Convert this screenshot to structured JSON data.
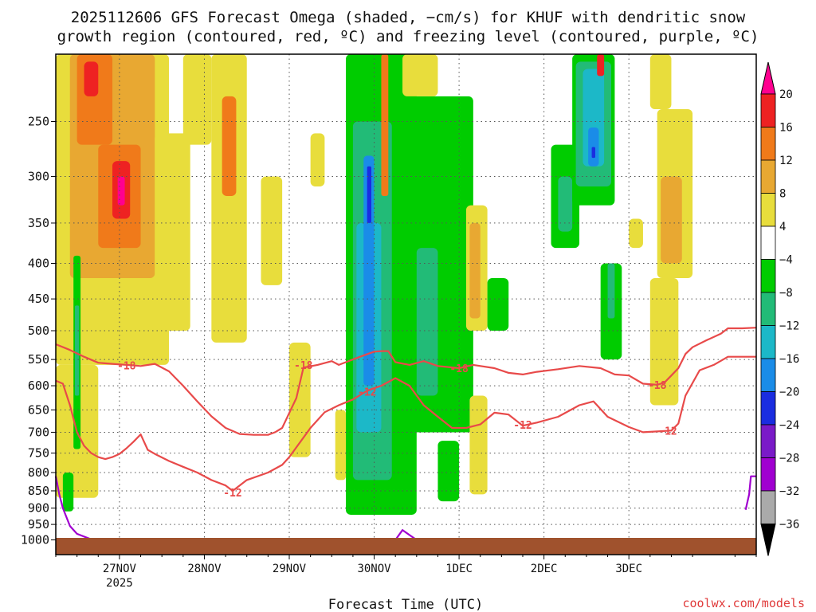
{
  "title_line1": "2025112606 GFS Forecast Omega (shaded, −cm/s) for KHUF with dendritic snow",
  "title_line2": "growth region (contoured, red, ºC) and freezing level (contoured, purple, ºC)",
  "credit": "coolwx.com/models",
  "chart_data": {
    "type": "heatmap",
    "title": "2025112606 GFS Forecast Omega (shaded, −cm/s) for KHUF with dendritic snow growth region (contoured, red, ºC) and freezing level (contoured, purple, ºC)",
    "xlabel": "Forecast Time (UTC)",
    "ylabel": "",
    "y_scale": "log-pressure (hPa), inverted",
    "y_ticks": [
      250,
      300,
      350,
      400,
      450,
      500,
      550,
      600,
      650,
      700,
      750,
      800,
      850,
      900,
      950,
      1000
    ],
    "x_ticks": [
      {
        "label": "27NOV",
        "sub": "2025"
      },
      {
        "label": "28NOV",
        "sub": ""
      },
      {
        "label": "29NOV",
        "sub": ""
      },
      {
        "label": "30NOV",
        "sub": ""
      },
      {
        "label": "1DEC",
        "sub": ""
      },
      {
        "label": "2DEC",
        "sub": ""
      },
      {
        "label": "3DEC",
        "sub": ""
      }
    ],
    "x_start_hour": -18,
    "x_end_hour": 180,
    "y_top_hpa": 200,
    "y_bottom_hpa": 1050,
    "grid": true,
    "colorbar": {
      "levels": [
        "20",
        "16",
        "12",
        "8",
        "4",
        "−4",
        "−8",
        "−12",
        "−16",
        "−20",
        "−24",
        "−28",
        "−32",
        "−36"
      ],
      "colors": [
        "#ff0090",
        "#ee2222",
        "#f07a1a",
        "#e8a832",
        "#e8dd3c",
        "#ffffff",
        "#00cc00",
        "#22bb77",
        "#1cb8c8",
        "#1a8ce8",
        "#1a2de0",
        "#7a1ac8",
        "#a000d0",
        "#aaaaaa",
        "#000000"
      ]
    },
    "omega_areas": [
      {
        "color": "#e8dd3c",
        "x0": -18,
        "x1": 14,
        "p0": 200,
        "p1": 560
      },
      {
        "color": "#e8dd3c",
        "x0": -18,
        "x1": -6,
        "p0": 560,
        "p1": 870
      },
      {
        "color": "#e8a832",
        "x0": -14,
        "x1": 10,
        "p0": 200,
        "p1": 420
      },
      {
        "color": "#f07a1a",
        "x0": -12,
        "x1": -2,
        "p0": 200,
        "p1": 270
      },
      {
        "color": "#ee2222",
        "x0": -10,
        "x1": -6,
        "p0": 205,
        "p1": 230
      },
      {
        "color": "#f07a1a",
        "x0": -6,
        "x1": 6,
        "p0": 270,
        "p1": 380
      },
      {
        "color": "#ee2222",
        "x0": -2,
        "x1": 3,
        "p0": 285,
        "p1": 345
      },
      {
        "color": "#ff0090",
        "x0": -0.5,
        "x1": 1.5,
        "p0": 300,
        "p1": 330
      },
      {
        "color": "#00cc00",
        "x0": -13,
        "x1": -11,
        "p0": 390,
        "p1": 740
      },
      {
        "color": "#22bb77",
        "x0": -12.6,
        "x1": -11.4,
        "p0": 460,
        "p1": 620
      },
      {
        "color": "#00cc00",
        "x0": -16,
        "x1": -13,
        "p0": 800,
        "p1": 910
      },
      {
        "color": "#e8dd3c",
        "x0": 10,
        "x1": 20,
        "p0": 260,
        "p1": 500
      },
      {
        "color": "#e8dd3c",
        "x0": 18,
        "x1": 26,
        "p0": 200,
        "p1": 270
      },
      {
        "color": "#e8dd3c",
        "x0": 26,
        "x1": 36,
        "p0": 200,
        "p1": 520
      },
      {
        "color": "#f07a1a",
        "x0": 29,
        "x1": 33,
        "p0": 230,
        "p1": 320
      },
      {
        "color": "#e8dd3c",
        "x0": 40,
        "x1": 46,
        "p0": 300,
        "p1": 430
      },
      {
        "color": "#e8dd3c",
        "x0": 48,
        "x1": 54,
        "p0": 520,
        "p1": 760
      },
      {
        "color": "#e8dd3c",
        "x0": 54,
        "x1": 58,
        "p0": 260,
        "p1": 310
      },
      {
        "color": "#e8dd3c",
        "x0": 61,
        "x1": 64,
        "p0": 650,
        "p1": 820
      },
      {
        "color": "#00cc00",
        "x0": 64,
        "x1": 84,
        "p0": 200,
        "p1": 920
      },
      {
        "color": "#22bb77",
        "x0": 66,
        "x1": 77,
        "p0": 250,
        "p1": 820
      },
      {
        "color": "#1cb8c8",
        "x0": 67,
        "x1": 74,
        "p0": 350,
        "p1": 700
      },
      {
        "color": "#1a8ce8",
        "x0": 69,
        "x1": 72,
        "p0": 280,
        "p1": 600
      },
      {
        "color": "#1a2de0",
        "x0": 70,
        "x1": 71.2,
        "p0": 290,
        "p1": 350
      },
      {
        "color": "#f07a1a",
        "x0": 74,
        "x1": 76,
        "p0": 200,
        "p1": 320
      },
      {
        "color": "#00cc00",
        "x0": 80,
        "x1": 100,
        "p0": 230,
        "p1": 700
      },
      {
        "color": "#22bb77",
        "x0": 84,
        "x1": 90,
        "p0": 380,
        "p1": 620
      },
      {
        "color": "#e8dd3c",
        "x0": 80,
        "x1": 90,
        "p0": 200,
        "p1": 230
      },
      {
        "color": "#00cc00",
        "x0": 90,
        "x1": 96,
        "p0": 720,
        "p1": 880
      },
      {
        "color": "#e8dd3c",
        "x0": 98,
        "x1": 104,
        "p0": 330,
        "p1": 500
      },
      {
        "color": "#e8a832",
        "x0": 99,
        "x1": 102,
        "p0": 350,
        "p1": 480
      },
      {
        "color": "#e8dd3c",
        "x0": 99,
        "x1": 104,
        "p0": 620,
        "p1": 860
      },
      {
        "color": "#00cc00",
        "x0": 104,
        "x1": 110,
        "p0": 420,
        "p1": 500
      },
      {
        "color": "#00cc00",
        "x0": 122,
        "x1": 130,
        "p0": 270,
        "p1": 380
      },
      {
        "color": "#22bb77",
        "x0": 124,
        "x1": 128,
        "p0": 300,
        "p1": 360
      },
      {
        "color": "#00cc00",
        "x0": 128,
        "x1": 140,
        "p0": 200,
        "p1": 330
      },
      {
        "color": "#22bb77",
        "x0": 129,
        "x1": 139,
        "p0": 205,
        "p1": 310
      },
      {
        "color": "#1cb8c8",
        "x0": 131,
        "x1": 137,
        "p0": 210,
        "p1": 290
      },
      {
        "color": "#1a8ce8",
        "x0": 132.5,
        "x1": 135.5,
        "p0": 255,
        "p1": 290
      },
      {
        "color": "#1a2de0",
        "x0": 133.5,
        "x1": 134.5,
        "p0": 272,
        "p1": 282
      },
      {
        "color": "#ee2222",
        "x0": 135,
        "x1": 137,
        "p0": 200,
        "p1": 215
      },
      {
        "color": "#00cc00",
        "x0": 136,
        "x1": 142,
        "p0": 400,
        "p1": 550
      },
      {
        "color": "#22bb77",
        "x0": 138,
        "x1": 140,
        "p0": 400,
        "p1": 480
      },
      {
        "color": "#e8dd3c",
        "x0": 144,
        "x1": 148,
        "p0": 345,
        "p1": 380
      },
      {
        "color": "#e8dd3c",
        "x0": 150,
        "x1": 156,
        "p0": 200,
        "p1": 240
      },
      {
        "color": "#e8dd3c",
        "x0": 152,
        "x1": 162,
        "p0": 240,
        "p1": 420
      },
      {
        "color": "#e8a832",
        "x0": 153,
        "x1": 159,
        "p0": 300,
        "p1": 400
      },
      {
        "color": "#e8dd3c",
        "x0": 150,
        "x1": 158,
        "p0": 420,
        "p1": 640
      }
    ],
    "contours": [
      {
        "name": "",
        "label": "-18",
        "color": "#e84a4a",
        "points": [
          [
            -18,
            523
          ],
          [
            -14,
            533
          ],
          [
            -10,
            545
          ],
          [
            -6,
            556
          ],
          [
            -2,
            558
          ],
          [
            2,
            560
          ],
          [
            6,
            562
          ],
          [
            10,
            558
          ],
          [
            14,
            572
          ],
          [
            18,
            600
          ],
          [
            22,
            632
          ],
          [
            26,
            664
          ],
          [
            30,
            690
          ],
          [
            34,
            704
          ],
          [
            38,
            706
          ],
          [
            42,
            706
          ],
          [
            44,
            700
          ],
          [
            46,
            690
          ],
          [
            50,
            625
          ],
          [
            52,
            565
          ],
          [
            56,
            560
          ],
          [
            60,
            553
          ],
          [
            62,
            560
          ],
          [
            64,
            555
          ],
          [
            68,
            545
          ],
          [
            72,
            536
          ],
          [
            74,
            535
          ],
          [
            76,
            535
          ],
          [
            78,
            555
          ],
          [
            82,
            560
          ],
          [
            86,
            553
          ],
          [
            90,
            562
          ],
          [
            96,
            566
          ],
          [
            100,
            560
          ],
          [
            106,
            566
          ],
          [
            110,
            575
          ],
          [
            114,
            578
          ],
          [
            118,
            573
          ],
          [
            124,
            568
          ],
          [
            130,
            562
          ],
          [
            136,
            566
          ],
          [
            140,
            578
          ],
          [
            144,
            580
          ],
          [
            148,
            596
          ],
          [
            152,
            598
          ],
          [
            154,
            594
          ],
          [
            156,
            580
          ],
          [
            158,
            566
          ],
          [
            160,
            540
          ],
          [
            162,
            528
          ],
          [
            166,
            516
          ],
          [
            170,
            505
          ],
          [
            172,
            496
          ],
          [
            176,
            496
          ],
          [
            180,
            495
          ]
        ]
      },
      {
        "name": "",
        "label": "-12",
        "color": "#e84a4a",
        "points": [
          [
            -18,
            590
          ],
          [
            -16,
            596
          ],
          [
            -14,
            640
          ],
          [
            -12,
            700
          ],
          [
            -10,
            732
          ],
          [
            -8,
            750
          ],
          [
            -6,
            760
          ],
          [
            -4,
            765
          ],
          [
            -2,
            760
          ],
          [
            0,
            752
          ],
          [
            2,
            738
          ],
          [
            4,
            722
          ],
          [
            6,
            705
          ],
          [
            8,
            742
          ],
          [
            10,
            752
          ],
          [
            14,
            770
          ],
          [
            18,
            785
          ],
          [
            22,
            800
          ],
          [
            26,
            820
          ],
          [
            30,
            835
          ],
          [
            32,
            850
          ],
          [
            36,
            820
          ],
          [
            42,
            800
          ],
          [
            46,
            780
          ],
          [
            48,
            760
          ],
          [
            50,
            736
          ],
          [
            54,
            690
          ],
          [
            58,
            655
          ],
          [
            62,
            640
          ],
          [
            66,
            628
          ],
          [
            70,
            610
          ],
          [
            74,
            600
          ],
          [
            78,
            585
          ],
          [
            82,
            600
          ],
          [
            86,
            640
          ],
          [
            90,
            665
          ],
          [
            94,
            690
          ],
          [
            96,
            690
          ],
          [
            98,
            690
          ],
          [
            102,
            682
          ],
          [
            106,
            656
          ],
          [
            110,
            660
          ],
          [
            114,
            685
          ],
          [
            118,
            678
          ],
          [
            124,
            665
          ],
          [
            130,
            640
          ],
          [
            134,
            632
          ],
          [
            138,
            665
          ],
          [
            144,
            688
          ],
          [
            148,
            700
          ],
          [
            152,
            698
          ],
          [
            156,
            696
          ],
          [
            158,
            680
          ],
          [
            160,
            620
          ],
          [
            164,
            570
          ],
          [
            168,
            560
          ],
          [
            172,
            545
          ],
          [
            176,
            545
          ],
          [
            180,
            545
          ]
        ]
      },
      {
        "name": "",
        "label": "",
        "color": "#a000d0",
        "points": [
          [
            -18,
            810
          ],
          [
            -17,
            860
          ],
          [
            -16,
            900
          ],
          [
            -14,
            955
          ],
          [
            -12,
            980
          ],
          [
            -8,
            998
          ],
          [
            -4,
            1006
          ],
          [
            0,
            1004
          ],
          [
            4,
            1012
          ],
          [
            8,
            1030
          ]
        ]
      },
      {
        "name": "",
        "label": "",
        "color": "#a000d0",
        "points": [
          [
            20,
            1040
          ],
          [
            24,
            1010
          ],
          [
            28,
            1002
          ],
          [
            32,
            1030
          ]
        ]
      },
      {
        "name": "",
        "label": "",
        "color": "#a000d0",
        "points": [
          [
            52,
            1040
          ],
          [
            54,
            1018
          ],
          [
            58,
            1028
          ]
        ]
      },
      {
        "name": "",
        "label": "",
        "color": "#a000d0",
        "points": [
          [
            62,
            1040
          ],
          [
            66,
            1016
          ],
          [
            70,
            1022
          ],
          [
            74,
            1008
          ],
          [
            78,
            1000
          ],
          [
            80,
            968
          ],
          [
            82,
            984
          ],
          [
            84,
            1000
          ],
          [
            86,
            1020
          ]
        ]
      },
      {
        "name": "",
        "label": "",
        "color": "#a000d0",
        "points": [
          [
            177,
            905
          ],
          [
            178,
            860
          ],
          [
            178.5,
            810
          ],
          [
            180,
            810
          ]
        ]
      }
    ],
    "contour_labels": [
      {
        "text": "-18",
        "x": 2,
        "p": 561
      },
      {
        "text": "-18",
        "x": 52,
        "p": 560
      },
      {
        "text": "-18",
        "x": 96,
        "p": 566
      },
      {
        "text": "-18",
        "x": 152,
        "p": 598
      },
      {
        "text": "-12",
        "x": 70,
        "p": 612
      },
      {
        "text": "-12",
        "x": 32,
        "p": 855
      },
      {
        "text": "-12",
        "x": 114,
        "p": 683
      },
      {
        "text": "-12",
        "x": 155,
        "p": 696
      }
    ]
  }
}
